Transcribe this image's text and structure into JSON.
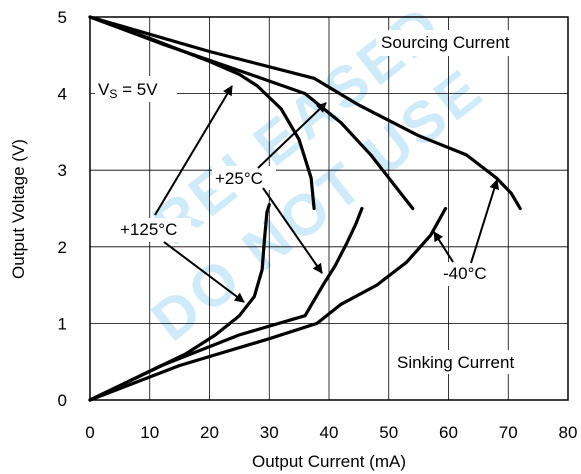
{
  "chart_data": {
    "type": "line",
    "xlabel": "Output Current (mA)",
    "ylabel": "Output Voltage (V)",
    "xlim": [
      0,
      80
    ],
    "ylim": [
      0,
      5
    ],
    "xticks": [
      0,
      10,
      20,
      30,
      40,
      50,
      60,
      70,
      80
    ],
    "yticks": [
      0,
      1,
      2,
      3,
      4,
      5
    ],
    "grid": true,
    "watermark": [
      "RELEASED",
      "DO NOT USE"
    ],
    "annotations": {
      "vs": "V",
      "vs_sub": "S",
      "vs_rest": " = 5V",
      "sourcing": "Sourcing Current",
      "sinking": "Sinking Current",
      "t125": "+125°C",
      "t25": "+25°C",
      "tm40": "-40°C"
    },
    "series": [
      {
        "name": "+125°C",
        "group": "sourcing",
        "points": [
          [
            0,
            5
          ],
          [
            10,
            4.72
          ],
          [
            20,
            4.42
          ],
          [
            25,
            4.25
          ],
          [
            28,
            4.1
          ],
          [
            32,
            3.8
          ],
          [
            35,
            3.4
          ],
          [
            37,
            2.9
          ],
          [
            37.5,
            2.5
          ]
        ]
      },
      {
        "name": "+25°C",
        "group": "sourcing",
        "points": [
          [
            0,
            5
          ],
          [
            12,
            4.65
          ],
          [
            25,
            4.3
          ],
          [
            36,
            4.0
          ],
          [
            42,
            3.62
          ],
          [
            47,
            3.2
          ],
          [
            51,
            2.8
          ],
          [
            54,
            2.5
          ]
        ]
      },
      {
        "name": "-40°C",
        "group": "sourcing",
        "points": [
          [
            0,
            5
          ],
          [
            20,
            4.55
          ],
          [
            37.5,
            4.2
          ],
          [
            45,
            3.85
          ],
          [
            55,
            3.45
          ],
          [
            63,
            3.2
          ],
          [
            68,
            2.9
          ],
          [
            70.5,
            2.7
          ],
          [
            72,
            2.5
          ]
        ]
      },
      {
        "name": "+125°C",
        "group": "sinking",
        "points": [
          [
            0,
            0
          ],
          [
            8,
            0.3
          ],
          [
            16,
            0.6
          ],
          [
            21,
            0.85
          ],
          [
            25,
            1.1
          ],
          [
            27.5,
            1.35
          ],
          [
            28.8,
            1.7
          ],
          [
            29.2,
            2.1
          ],
          [
            29.6,
            2.45
          ],
          [
            30,
            2.55
          ]
        ]
      },
      {
        "name": "+25°C",
        "group": "sinking",
        "points": [
          [
            0,
            0
          ],
          [
            12,
            0.45
          ],
          [
            25,
            0.85
          ],
          [
            36,
            1.1
          ],
          [
            39,
            1.5
          ],
          [
            41,
            1.75
          ],
          [
            43,
            2.05
          ],
          [
            44.5,
            2.3
          ],
          [
            45.5,
            2.5
          ]
        ]
      },
      {
        "name": "-40°C",
        "group": "sinking",
        "points": [
          [
            0,
            0
          ],
          [
            15,
            0.45
          ],
          [
            30,
            0.8
          ],
          [
            38,
            1.0
          ],
          [
            42,
            1.25
          ],
          [
            48,
            1.5
          ],
          [
            53,
            1.8
          ],
          [
            57,
            2.15
          ],
          [
            59.5,
            2.5
          ]
        ]
      }
    ]
  }
}
